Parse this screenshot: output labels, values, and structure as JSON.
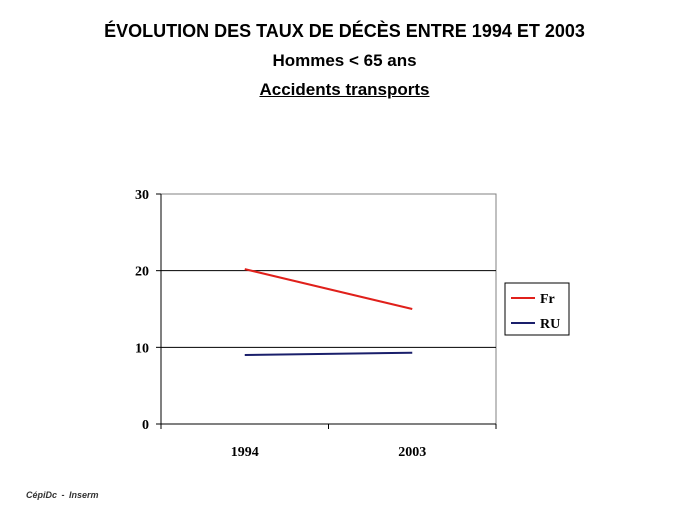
{
  "header": {
    "title": "ÉVOLUTION DES TAUX DE DÉCÈS ENTRE 1994 ET 2003",
    "subtitle": "Hommes < 65 ans",
    "subtitle2": "Accidents transports"
  },
  "footer": {
    "source_left": "CépiDc",
    "separator": "-",
    "source_right": "Inserm"
  },
  "chart_data": {
    "type": "line",
    "title": "ÉVOLUTION DES TAUX DE DÉCÈS ENTRE 1994 ET 2003",
    "subtitle": "Hommes < 65 ans",
    "x": [
      "1994",
      "2003"
    ],
    "ylim": [
      0,
      30
    ],
    "yticks": [
      0,
      10,
      20,
      30
    ],
    "grid": true,
    "legend_position": "right",
    "series": [
      {
        "name": "Fr",
        "values": [
          20.2,
          15.0
        ],
        "color": "#e0201b"
      },
      {
        "name": "RU",
        "values": [
          9.0,
          9.3
        ],
        "color": "#1a1f6b"
      }
    ]
  }
}
